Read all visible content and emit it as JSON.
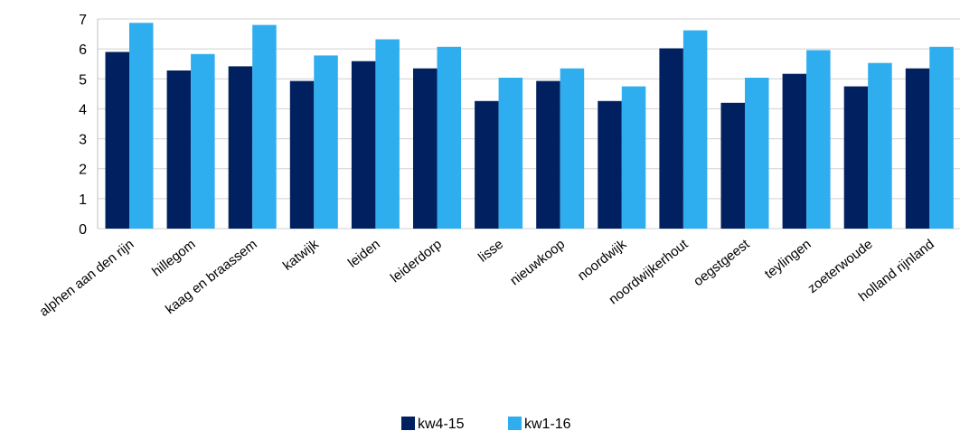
{
  "chart_data": {
    "type": "bar",
    "title": "",
    "xlabel": "",
    "ylabel": "",
    "ylim": [
      0,
      7
    ],
    "yticks": [
      "0",
      "1",
      "2",
      "3",
      "4",
      "5",
      "6",
      "7"
    ],
    "grid": "horizontal",
    "legend": "bottom-center",
    "categories": [
      "alphen aan den rijn",
      "hillegom",
      "kaag en braassem",
      "katwijk",
      "leiden",
      "leiderdorp",
      "lisse",
      "nieuwkoop",
      "noordwijk",
      "noordwijkerhout",
      "oegstgeest",
      "teylingen",
      "zoeterwoude",
      "holland rijnland"
    ],
    "series": [
      {
        "name": "kw4-15",
        "color": "#002060",
        "values": [
          5.9,
          5.28,
          5.42,
          4.93,
          5.59,
          5.35,
          4.26,
          4.93,
          4.26,
          6.02,
          4.2,
          5.17,
          4.75,
          5.35
        ]
      },
      {
        "name": "kw1-16",
        "color": "#2EAEEF",
        "values": [
          6.87,
          5.83,
          6.8,
          5.78,
          6.32,
          6.07,
          5.04,
          5.35,
          4.75,
          6.62,
          5.04,
          5.96,
          5.53,
          6.07
        ]
      }
    ]
  }
}
